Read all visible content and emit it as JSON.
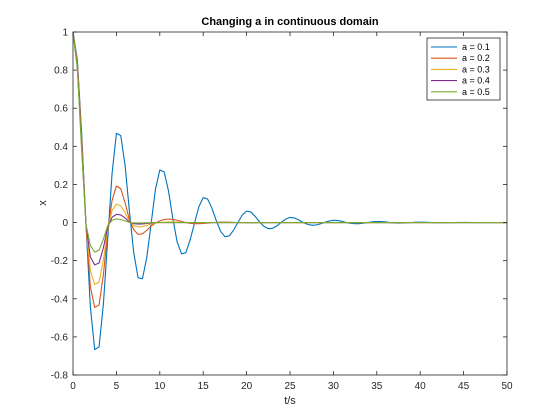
{
  "chart_data": {
    "type": "line",
    "title": "Changing a in continuous domain",
    "xlabel": "t/s",
    "ylabel": "x",
    "xlim": [
      0,
      50
    ],
    "ylim": [
      -0.8,
      1
    ],
    "x_ticks": [
      "0",
      "5",
      "10",
      "15",
      "20",
      "25",
      "30",
      "35",
      "40",
      "45",
      "50"
    ],
    "y_ticks": [
      "-0.8",
      "-0.6",
      "-0.4",
      "-0.2",
      "0",
      "0.2",
      "0.4",
      "0.6",
      "0.8",
      "1"
    ],
    "grid": false,
    "legend_position": "top-right",
    "x": [
      0,
      0.5,
      1,
      1.5,
      2,
      2.5,
      3,
      3.5,
      4,
      4.5,
      5,
      5.5,
      6,
      6.5,
      7,
      7.5,
      8,
      8.5,
      9,
      9.5,
      10,
      10.5,
      11,
      11.5,
      12,
      12.5,
      13,
      13.5,
      14,
      14.5,
      15,
      15.5,
      16,
      16.5,
      17,
      17.5,
      18,
      18.5,
      19,
      19.5,
      20,
      20.5,
      21,
      21.5,
      22,
      22.5,
      23,
      23.5,
      24,
      24.5,
      25,
      25.5,
      26,
      26.5,
      27,
      27.5,
      28,
      28.5,
      29,
      29.5,
      30,
      30.5,
      31,
      31.5,
      32,
      32.5,
      33,
      33.5,
      34,
      34.5,
      35,
      35.5,
      36,
      36.5,
      37,
      37.5,
      38,
      38.5,
      39,
      39.5,
      40,
      40.5,
      41,
      41.5,
      42,
      42.5,
      43,
      43.5,
      44,
      44.5,
      45,
      45.5,
      46,
      46.5,
      47,
      47.5,
      48,
      48.5,
      49,
      49.5,
      50
    ],
    "series": [
      {
        "name": "a = 0.1",
        "color": "#0072BD",
        "values": [
          1.0,
          0.854,
          0.469,
          -0.016,
          -0.442,
          -0.667,
          -0.652,
          -0.429,
          -0.087,
          0.257,
          0.468,
          0.457,
          0.3,
          0.059,
          -0.159,
          -0.29,
          -0.295,
          -0.183,
          -0.006,
          0.175,
          0.276,
          0.266,
          0.166,
          0.021,
          -0.102,
          -0.164,
          -0.158,
          -0.09,
          -0.003,
          0.083,
          0.131,
          0.124,
          0.076,
          0.011,
          -0.046,
          -0.074,
          -0.07,
          -0.04,
          0.001,
          0.039,
          0.06,
          0.055,
          0.032,
          0.003,
          -0.02,
          -0.032,
          -0.03,
          -0.017,
          0.001,
          0.018,
          0.027,
          0.024,
          0.014,
          0.001,
          -0.009,
          -0.014,
          -0.013,
          -0.007,
          0.001,
          0.008,
          0.012,
          0.011,
          0.006,
          0.0,
          -0.004,
          -0.006,
          -0.006,
          -0.003,
          0.0,
          0.004,
          0.005,
          0.005,
          0.003,
          0.0,
          -0.002,
          -0.003,
          -0.002,
          -0.001,
          0.0,
          0.002,
          0.002,
          0.002,
          0.001,
          0.0,
          -0.001,
          -0.001,
          -0.001,
          0.0,
          0.0,
          0.001,
          0.001,
          0.001,
          0.0,
          0.0,
          0.0,
          0.0,
          0.0,
          0.0,
          0.0,
          0.0,
          0.0
        ]
      },
      {
        "name": "a = 0.2",
        "color": "#D95319",
        "values": [
          1.0,
          0.842,
          0.445,
          -0.014,
          -0.337,
          -0.445,
          -0.433,
          -0.274,
          -0.047,
          0.116,
          0.192,
          0.178,
          0.104,
          0.015,
          -0.038,
          -0.062,
          -0.059,
          -0.041,
          -0.018,
          -0.003,
          0.009,
          0.016,
          0.018,
          0.017,
          0.012,
          0.006,
          0.0,
          -0.004,
          -0.006,
          -0.006,
          -0.005,
          -0.003,
          -0.001,
          0.001,
          0.002,
          0.002,
          0.002,
          0.001,
          0.0,
          0.0,
          -0.001,
          -0.001,
          -0.001,
          0.0,
          0.0,
          0.0,
          0.0,
          0.0,
          0.0,
          0.0,
          0.0,
          0.0,
          0.0,
          0.0,
          0.0,
          0.0,
          0.0,
          0.0,
          0.0,
          0.0,
          0.0,
          0.0,
          0.0,
          0.0,
          0.0,
          0.0,
          0.0,
          0.0,
          0.0,
          0.0,
          0.0,
          0.0,
          0.0,
          0.0,
          0.0,
          0.0,
          0.0,
          0.0,
          0.0,
          0.0,
          0.0,
          0.0,
          0.0,
          0.0,
          0.0,
          0.0,
          0.0,
          0.0,
          0.0,
          0.0,
          0.0,
          0.0,
          0.0,
          0.0,
          0.0,
          0.0,
          0.0,
          0.0,
          0.0,
          0.0,
          0.0
        ]
      },
      {
        "name": "a = 0.3",
        "color": "#EDB120",
        "values": [
          1.0,
          0.83,
          0.421,
          -0.013,
          -0.252,
          -0.325,
          -0.312,
          -0.196,
          -0.034,
          0.063,
          0.097,
          0.087,
          0.051,
          0.006,
          -0.016,
          -0.023,
          -0.021,
          -0.015,
          -0.007,
          -0.002,
          0.001,
          0.002,
          0.003,
          0.003,
          0.002,
          0.001,
          0.0,
          0.0,
          0.0,
          0.0,
          0.0,
          0.0,
          0.0,
          0.0,
          0.0,
          0.0,
          0.0,
          0.0,
          0.0,
          0.0,
          0.0,
          0.0,
          0.0,
          0.0,
          0.0,
          0.0,
          0.0,
          0.0,
          0.0,
          0.0,
          0.0,
          0.0,
          0.0,
          0.0,
          0.0,
          0.0,
          0.0,
          0.0,
          0.0,
          0.0,
          0.0,
          0.0,
          0.0,
          0.0,
          0.0,
          0.0,
          0.0,
          0.0,
          0.0,
          0.0,
          0.0,
          0.0,
          0.0,
          0.0,
          0.0,
          0.0,
          0.0,
          0.0,
          0.0,
          0.0,
          0.0,
          0.0,
          0.0,
          0.0,
          0.0,
          0.0,
          0.0,
          0.0,
          0.0,
          0.0,
          0.0,
          0.0,
          0.0,
          0.0,
          0.0,
          0.0,
          0.0,
          0.0,
          0.0,
          0.0,
          0.0
        ]
      },
      {
        "name": "a = 0.4",
        "color": "#7E2F8E",
        "values": [
          1.0,
          0.818,
          0.398,
          -0.012,
          -0.18,
          -0.222,
          -0.212,
          -0.133,
          -0.024,
          0.028,
          0.043,
          0.04,
          0.024,
          0.003,
          -0.006,
          -0.008,
          -0.007,
          -0.005,
          -0.002,
          0.0,
          0.0,
          0.0,
          0.0,
          0.0,
          0.0,
          0.0,
          0.0,
          0.0,
          0.0,
          0.0,
          0.0,
          0.0,
          0.0,
          0.0,
          0.0,
          0.0,
          0.0,
          0.0,
          0.0,
          0.0,
          0.0,
          0.0,
          0.0,
          0.0,
          0.0,
          0.0,
          0.0,
          0.0,
          0.0,
          0.0,
          0.0,
          0.0,
          0.0,
          0.0,
          0.0,
          0.0,
          0.0,
          0.0,
          0.0,
          0.0,
          0.0,
          0.0,
          0.0,
          0.0,
          0.0,
          0.0,
          0.0,
          0.0,
          0.0,
          0.0,
          0.0,
          0.0,
          0.0,
          0.0,
          0.0,
          0.0,
          0.0,
          0.0,
          0.0,
          0.0,
          0.0,
          0.0,
          0.0,
          0.0,
          0.0,
          0.0,
          0.0,
          0.0,
          0.0,
          0.0,
          0.0,
          0.0,
          0.0,
          0.0,
          0.0,
          0.0,
          0.0,
          0.0,
          0.0,
          0.0,
          0.0
        ]
      },
      {
        "name": "a = 0.5",
        "color": "#77AC30",
        "values": [
          1.0,
          0.806,
          0.375,
          -0.011,
          -0.12,
          -0.155,
          -0.145,
          -0.087,
          -0.016,
          0.012,
          0.019,
          0.016,
          0.009,
          0.001,
          -0.002,
          -0.002,
          -0.002,
          -0.001,
          0.0,
          0.0,
          0.0,
          0.0,
          0.0,
          0.0,
          0.0,
          0.0,
          0.0,
          0.0,
          0.0,
          0.0,
          0.0,
          0.0,
          0.0,
          0.0,
          0.0,
          0.0,
          0.0,
          0.0,
          0.0,
          0.0,
          0.0,
          0.0,
          0.0,
          0.0,
          0.0,
          0.0,
          0.0,
          0.0,
          0.0,
          0.0,
          0.0,
          0.0,
          0.0,
          0.0,
          0.0,
          0.0,
          0.0,
          0.0,
          0.0,
          0.0,
          0.0,
          0.0,
          0.0,
          0.0,
          0.0,
          0.0,
          0.0,
          0.0,
          0.0,
          0.0,
          0.0,
          0.0,
          0.0,
          0.0,
          0.0,
          0.0,
          0.0,
          0.0,
          0.0,
          0.0,
          0.0,
          0.0,
          0.0,
          0.0,
          0.0,
          0.0,
          0.0,
          0.0,
          0.0,
          0.0,
          0.0,
          0.0,
          0.0,
          0.0,
          0.0,
          0.0,
          0.0,
          0.0,
          0.0,
          0.0,
          0.0
        ]
      }
    ]
  }
}
